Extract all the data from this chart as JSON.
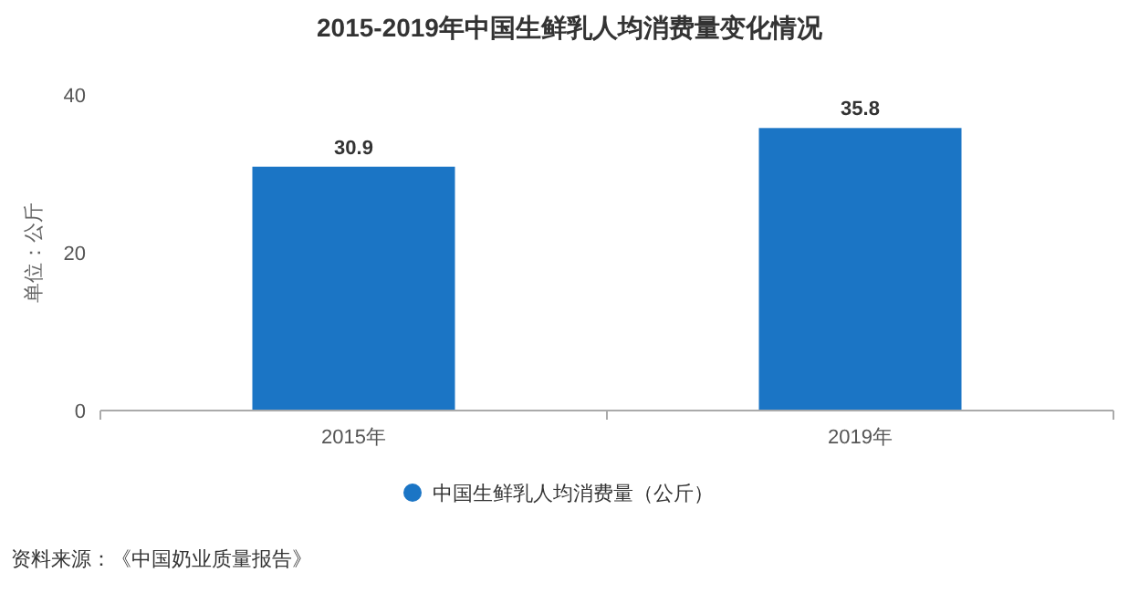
{
  "chart_data": {
    "type": "bar",
    "title": "2015-2019年中国生鲜乳人均消费量变化情况",
    "ylabel": "单位：公斤",
    "categories": [
      "2015年",
      "2019年"
    ],
    "series": [
      {
        "name": "中国生鲜乳人均消费量（公斤）",
        "color": "#1b75c5",
        "values": [
          30.9,
          35.8
        ]
      }
    ],
    "ylim": [
      0,
      40
    ],
    "yticks": [
      0,
      20,
      40
    ],
    "data_labels": true,
    "legend": "bottom",
    "annotations": [
      "资料来源：《中国奶业质量报告》"
    ]
  }
}
